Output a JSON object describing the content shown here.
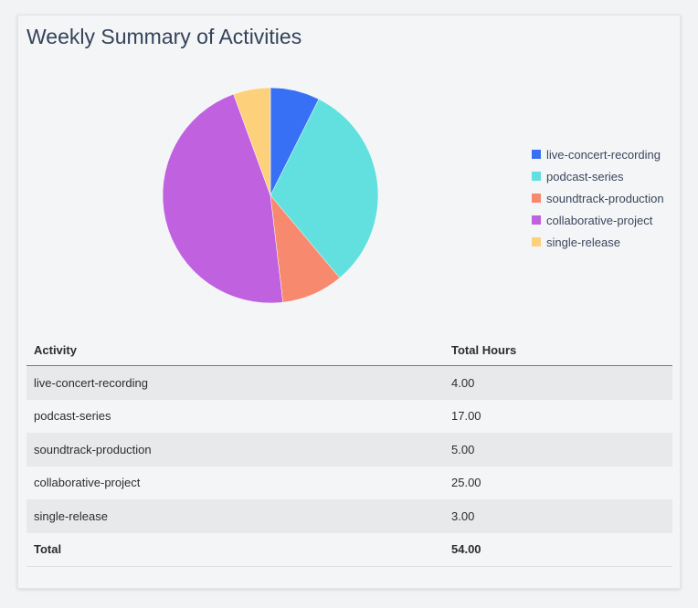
{
  "title": "Weekly Summary of Activities",
  "chart_data": {
    "type": "pie",
    "categories": [
      "live-concert-recording",
      "podcast-series",
      "soundtrack-production",
      "collaborative-project",
      "single-release"
    ],
    "values": [
      4,
      17,
      5,
      25,
      3
    ],
    "colors": [
      "#3870f5",
      "#62e0e0",
      "#f78a6e",
      "#c061e0",
      "#fdd17b"
    ],
    "legend_position": "right"
  },
  "table": {
    "headers": [
      "Activity",
      "Total Hours"
    ],
    "rows": [
      [
        "live-concert-recording",
        "4.00"
      ],
      [
        "podcast-series",
        "17.00"
      ],
      [
        "soundtrack-production",
        "5.00"
      ],
      [
        "collaborative-project",
        "25.00"
      ],
      [
        "single-release",
        "3.00"
      ]
    ],
    "total_label": "Total",
    "total_value": "54.00"
  }
}
